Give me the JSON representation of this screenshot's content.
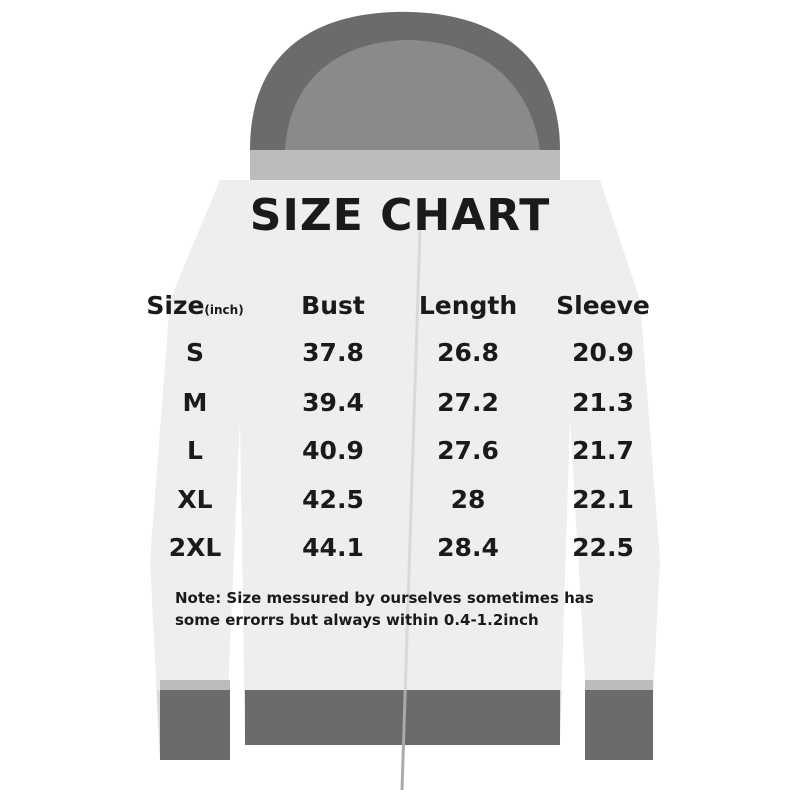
{
  "title": "SIZE CHART",
  "columns": [
    {
      "label": "Size",
      "unit": "(inch)"
    },
    {
      "label": "Bust"
    },
    {
      "label": "Length"
    },
    {
      "label": "Sleeve"
    }
  ],
  "rows": [
    [
      "S",
      "37.8",
      "26.8",
      "20.9"
    ],
    [
      "M",
      "39.4",
      "27.2",
      "21.3"
    ],
    [
      "L",
      "40.9",
      "27.6",
      "21.7"
    ],
    [
      "XL",
      "42.5",
      "28",
      "22.1"
    ],
    [
      "2XL",
      "44.1",
      "28.4",
      "22.5"
    ]
  ],
  "note": {
    "line1": "Note:  Size messured by ourselves sometimes has",
    "line2": "some errorrs but always within 0.4-1.2inch"
  },
  "colors": {
    "garment": "#d9d9d9",
    "hood_cuffs": "#6b6b6b",
    "text": "#1a1a1a"
  }
}
